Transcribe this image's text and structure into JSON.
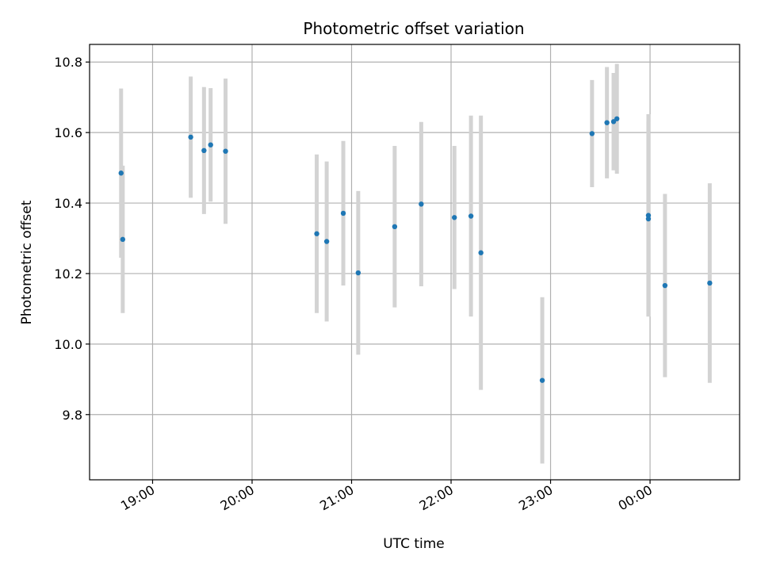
{
  "chart_data": {
    "type": "scatter",
    "title": "Photometric offset variation",
    "xlabel": "UTC time",
    "ylabel": "Photometric offset",
    "x_unit": "time",
    "xlim": [
      "18:22",
      "00:54"
    ],
    "ylim": [
      9.615,
      10.85
    ],
    "x_ticks": [
      "19:00",
      "20:00",
      "21:00",
      "22:00",
      "23:00",
      "00:00"
    ],
    "y_ticks": [
      "9.8",
      "10.0",
      "10.2",
      "10.4",
      "10.6",
      "10.8"
    ],
    "grid": true,
    "colors": {
      "point": "#1f77b4",
      "errorbar": "#d3d3d3",
      "grid": "#b0b0b0"
    },
    "points": [
      {
        "t": "18:41",
        "y": 10.485,
        "err_low": 10.245,
        "err_high": 10.725
      },
      {
        "t": "18:42",
        "y": 10.297,
        "err_low": 10.088,
        "err_high": 10.506
      },
      {
        "t": "19:23",
        "y": 10.587,
        "err_low": 10.415,
        "err_high": 10.759
      },
      {
        "t": "19:31",
        "y": 10.549,
        "err_low": 10.369,
        "err_high": 10.729
      },
      {
        "t": "19:35",
        "y": 10.565,
        "err_low": 10.404,
        "err_high": 10.726
      },
      {
        "t": "19:44",
        "y": 10.547,
        "err_low": 10.341,
        "err_high": 10.753
      },
      {
        "t": "20:39",
        "y": 10.313,
        "err_low": 10.088,
        "err_high": 10.538
      },
      {
        "t": "20:45",
        "y": 10.291,
        "err_low": 10.064,
        "err_high": 10.518
      },
      {
        "t": "20:55",
        "y": 10.371,
        "err_low": 10.166,
        "err_high": 10.576
      },
      {
        "t": "21:04",
        "y": 10.202,
        "err_low": 9.97,
        "err_high": 10.434
      },
      {
        "t": "21:26",
        "y": 10.333,
        "err_low": 10.104,
        "err_high": 10.562
      },
      {
        "t": "21:42",
        "y": 10.397,
        "err_low": 10.164,
        "err_high": 10.63
      },
      {
        "t": "22:02",
        "y": 10.359,
        "err_low": 10.156,
        "err_high": 10.562
      },
      {
        "t": "22:12",
        "y": 10.363,
        "err_low": 10.078,
        "err_high": 10.648
      },
      {
        "t": "22:18",
        "y": 10.259,
        "err_low": 9.87,
        "err_high": 10.648
      },
      {
        "t": "22:55",
        "y": 9.897,
        "err_low": 9.661,
        "err_high": 10.133
      },
      {
        "t": "23:25",
        "y": 10.597,
        "err_low": 10.445,
        "err_high": 10.749
      },
      {
        "t": "23:34",
        "y": 10.628,
        "err_low": 10.47,
        "err_high": 10.786
      },
      {
        "t": "23:38",
        "y": 10.631,
        "err_low": 10.493,
        "err_high": 10.769
      },
      {
        "t": "23:40",
        "y": 10.639,
        "err_low": 10.483,
        "err_high": 10.795
      },
      {
        "t": "23:59",
        "y": 10.365,
        "err_low": 10.078,
        "err_high": 10.652
      },
      {
        "t": "23:59",
        "y": 10.355,
        "err_low": 10.078,
        "err_high": 10.632
      },
      {
        "t": "00:09",
        "y": 10.166,
        "err_low": 9.906,
        "err_high": 10.426
      },
      {
        "t": "00:36",
        "y": 10.173,
        "err_low": 9.89,
        "err_high": 10.456
      }
    ]
  }
}
